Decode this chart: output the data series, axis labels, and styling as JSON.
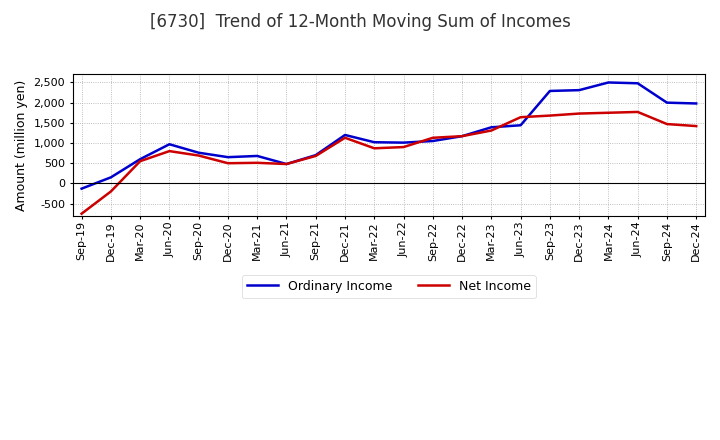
{
  "title": "[6730]  Trend of 12-Month Moving Sum of Incomes",
  "ylabel": "Amount (million yen)",
  "background_color": "#ffffff",
  "plot_bg_color": "#ffffff",
  "grid_color": "#aaaaaa",
  "x_labels": [
    "Sep-19",
    "Dec-19",
    "Mar-20",
    "Jun-20",
    "Sep-20",
    "Dec-20",
    "Mar-21",
    "Jun-21",
    "Sep-21",
    "Dec-21",
    "Mar-22",
    "Jun-22",
    "Sep-22",
    "Dec-22",
    "Mar-23",
    "Jun-23",
    "Sep-23",
    "Dec-23",
    "Mar-24",
    "Jun-24",
    "Sep-24",
    "Dec-24"
  ],
  "ordinary_income": [
    -130,
    150,
    600,
    970,
    760,
    650,
    680,
    480,
    700,
    1200,
    1020,
    1010,
    1050,
    1170,
    1390,
    1440,
    2290,
    2310,
    2500,
    2480,
    2000,
    1980
  ],
  "net_income": [
    -750,
    -200,
    550,
    800,
    690,
    500,
    510,
    480,
    680,
    1130,
    870,
    900,
    1130,
    1170,
    1310,
    1640,
    1680,
    1730,
    1750,
    1770,
    1470,
    1420
  ],
  "ordinary_color": "#0000cc",
  "net_color": "#cc0000",
  "ylim": [
    -800,
    2700
  ],
  "yticks": [
    -500,
    0,
    500,
    1000,
    1500,
    2000,
    2500
  ],
  "line_width": 1.8,
  "title_fontsize": 12,
  "tick_fontsize": 8,
  "ylabel_fontsize": 9,
  "legend_labels": [
    "Ordinary Income",
    "Net Income"
  ],
  "legend_fontsize": 9
}
